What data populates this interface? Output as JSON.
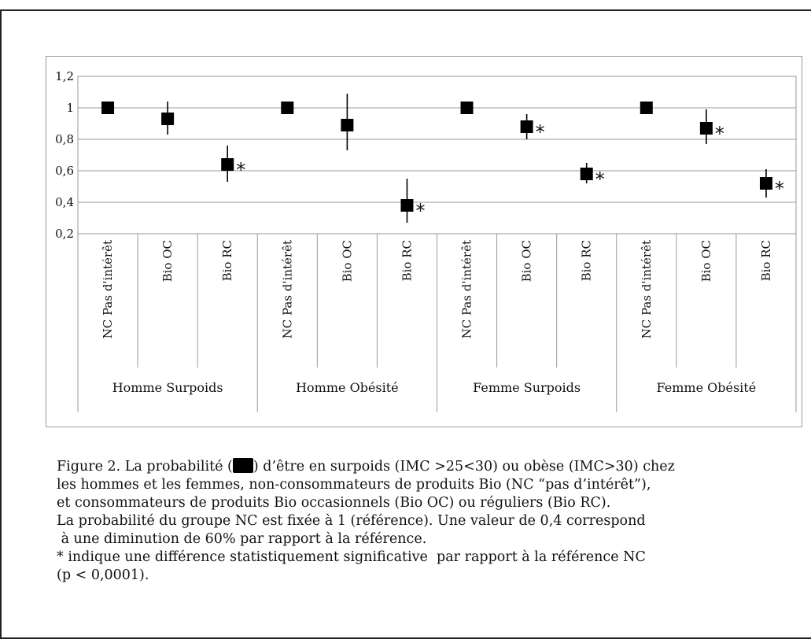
{
  "chart_data": {
    "type": "scatter",
    "title": "",
    "xlabel": "",
    "ylabel": "",
    "ylim": [
      0.2,
      1.2
    ],
    "ytick_labels": [
      "0,2",
      "0,4",
      "0,6",
      "0,8",
      "1",
      "1,2"
    ],
    "ytick_values": [
      0.2,
      0.4,
      0.6,
      0.8,
      1.0,
      1.2
    ],
    "grid": "horizontal",
    "groups": [
      "Homme Surpoids",
      "Homme Obésité",
      "Femme Surpoids",
      "Femme Obésité"
    ],
    "categories": [
      "NC Pas d'intérêt",
      "Bio OC",
      "Bio RC",
      "NC Pas d'intérêt",
      "Bio OC",
      "Bio RC",
      "NC Pas d'intérêt",
      "Bio OC",
      "Bio RC",
      "NC Pas d'intérêt",
      "Bio OC",
      "Bio RC"
    ],
    "values": [
      1.0,
      0.93,
      0.64,
      1.0,
      0.89,
      0.38,
      1.0,
      0.88,
      0.58,
      1.0,
      0.87,
      0.52
    ],
    "error_low": [
      null,
      0.83,
      0.53,
      null,
      0.73,
      0.27,
      null,
      0.8,
      0.52,
      null,
      0.77,
      0.43
    ],
    "error_high": [
      null,
      1.04,
      0.76,
      null,
      1.09,
      0.55,
      null,
      0.96,
      0.65,
      null,
      0.99,
      0.61
    ],
    "significant": [
      false,
      false,
      true,
      false,
      false,
      true,
      false,
      true,
      true,
      false,
      true,
      true
    ],
    "significance_marker": "*",
    "marker_color": "#000000"
  },
  "caption": {
    "lines": [
      {
        "before": "Figure 2. La probabilité (",
        "after": ") d’être en surpoids (IMC >25<30) ou obèse (IMC>30) chez"
      },
      {
        "text": "les hommes et les femmes, non-consommateurs de produits Bio (NC “pas d’intérêt”),"
      },
      {
        "text": "et consommateurs de produits Bio occasionnels (Bio OC) ou réguliers (Bio RC)."
      },
      {
        "text": "La probabilité du groupe NC est fixée à 1 (référence). Une valeur de 0,4 correspond"
      },
      {
        "text": " à une diminution de 60% par rapport à la référence."
      },
      {
        "text": "* indique une différence statistiquement significative  par rapport à la référence NC"
      },
      {
        "text": "(p < 0,0001)."
      }
    ]
  }
}
